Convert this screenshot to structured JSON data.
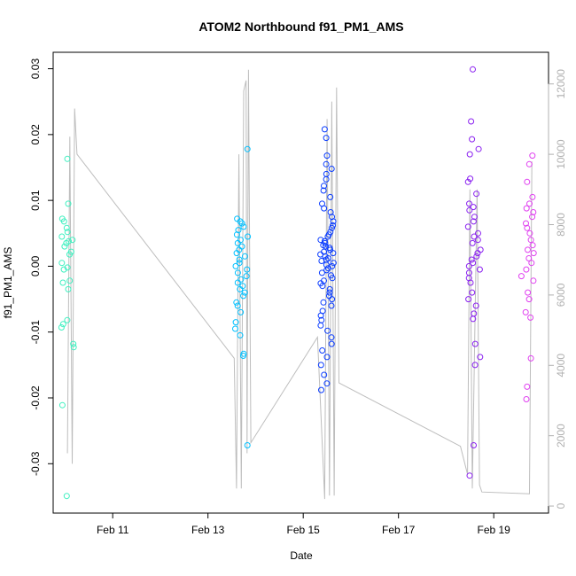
{
  "chart_data": {
    "type": "scatter",
    "title": "ATOM2 Northbound f91_PM1_AMS",
    "xlabel": "Date",
    "ylabel": "f91_PM1_AMS",
    "x_ticks": [
      "Feb 11",
      "Feb 13",
      "Feb 15",
      "Feb 17",
      "Feb 19"
    ],
    "x_tick_days": [
      11,
      13,
      15,
      17,
      19
    ],
    "xlim_days": [
      9.75,
      20.15
    ],
    "y_ticks": [
      -0.03,
      -0.02,
      -0.01,
      0.0,
      0.01,
      0.02,
      0.03
    ],
    "y_tick_labels": [
      "-0.03",
      "-0.02",
      "-0.01",
      "0.00",
      "0.01",
      "0.02",
      "0.03"
    ],
    "ylim": [
      -0.0375,
      0.0325
    ],
    "y2_ticks": [
      0,
      2000,
      4000,
      6000,
      8000,
      10000,
      12000
    ],
    "y2_tick_labels": [
      "0",
      "2000",
      "4000",
      "6000",
      "8000",
      "10000",
      "12000"
    ],
    "y2lim": [
      -200,
      12900
    ],
    "grid": false,
    "colors": {
      "point_gradient": [
        "#3ff0c0",
        "#00c0ff",
        "#0a3cff",
        "#8a20f0",
        "#e040f0"
      ],
      "secondary_line": "#bdbdbd",
      "secondary_axis": "#b0b0b0"
    },
    "series": [
      {
        "type": "scatter",
        "axis": "left",
        "clusters": [
          {
            "day": 10.05,
            "color": "#3ff0c0",
            "values": [
              0.0163,
              0.0095,
              0.0072,
              0.0068,
              0.0058,
              0.0052,
              0.0045,
              0.004,
              0.0038,
              0.0035,
              0.003,
              0.0022,
              0.0018,
              0.0005,
              -0.0002,
              -0.0005,
              -0.0022,
              -0.0025,
              -0.0035,
              -0.0082,
              -0.0088,
              -0.0093,
              -0.0118,
              -0.0123,
              -0.0211,
              -0.0349
            ]
          },
          {
            "day": 13.7,
            "color": "#00c0ff",
            "values": [
              0.0178,
              0.0072,
              0.0068,
              0.0065,
              0.006,
              0.0055,
              0.0048,
              0.0045,
              0.004,
              0.0035,
              0.003,
              0.0025,
              0.002,
              0.0015,
              0.001,
              0.0005,
              0.0,
              -0.0005,
              -0.001,
              -0.0015,
              -0.002,
              -0.0025,
              -0.003,
              -0.0035,
              -0.004,
              -0.0045,
              -0.0055,
              -0.006,
              -0.007,
              -0.0085,
              -0.0095,
              -0.0105,
              -0.0133,
              -0.0136,
              -0.0272
            ]
          },
          {
            "day": 15.5,
            "color": "#0a3cff",
            "values": [
              0.0208,
              0.0195,
              0.0168,
              0.0155,
              0.0148,
              0.014,
              0.0132,
              0.0122,
              0.0115,
              0.0105,
              0.0095,
              0.0088,
              0.0082,
              0.0075,
              0.0068,
              0.0062,
              0.0058,
              0.0052,
              0.0048,
              0.0045,
              0.004,
              0.0038,
              0.0035,
              0.0032,
              0.003,
              0.0028,
              0.0025,
              0.0022,
              0.002,
              0.0018,
              0.0015,
              0.0012,
              0.001,
              0.0008,
              0.0005,
              0.0002,
              0.0,
              -0.0003,
              -0.0006,
              -0.001,
              -0.0014,
              -0.0018,
              -0.0022,
              -0.0026,
              -0.003,
              -0.0035,
              -0.004,
              -0.0045,
              -0.005,
              -0.0055,
              -0.006,
              -0.0068,
              -0.0075,
              -0.0082,
              -0.009,
              -0.0098,
              -0.0108,
              -0.0118,
              -0.0128,
              -0.0138,
              -0.015,
              -0.0165,
              -0.0178,
              -0.0188
            ]
          },
          {
            "day": 18.6,
            "color": "#8a20f0",
            "values": [
              0.0299,
              0.022,
              0.0193,
              0.0178,
              0.017,
              0.0133,
              0.0128,
              0.011,
              0.0095,
              0.009,
              0.0085,
              0.0075,
              0.0068,
              0.006,
              0.005,
              0.0045,
              0.004,
              0.0035,
              0.0025,
              0.002,
              0.0015,
              0.001,
              0.0005,
              0.0,
              -0.0005,
              -0.001,
              -0.0018,
              -0.0025,
              -0.004,
              -0.005,
              -0.006,
              -0.0072,
              -0.008,
              -0.0118,
              -0.0138,
              -0.015,
              -0.0272,
              -0.0318
            ]
          },
          {
            "day": 19.7,
            "color": "#e040f0",
            "values": [
              0.0168,
              0.0155,
              0.0128,
              0.0105,
              0.0095,
              0.0088,
              0.0082,
              0.0075,
              0.0065,
              0.0058,
              0.005,
              0.004,
              0.0032,
              0.0025,
              0.002,
              0.0012,
              0.0005,
              -0.0005,
              -0.0015,
              -0.0022,
              -0.004,
              -0.005,
              -0.007,
              -0.0078,
              -0.014,
              -0.0183,
              -0.0202
            ]
          }
        ]
      },
      {
        "type": "line",
        "axis": "right",
        "points": [
          [
            10.05,
            1500
          ],
          [
            10.1,
            10500
          ],
          [
            10.15,
            1200
          ],
          [
            10.2,
            11300
          ],
          [
            10.25,
            10000
          ],
          [
            13.55,
            4200
          ],
          [
            13.6,
            500
          ],
          [
            13.65,
            10000
          ],
          [
            13.7,
            500
          ],
          [
            13.75,
            11800
          ],
          [
            13.8,
            12100
          ],
          [
            13.82,
            1500
          ],
          [
            13.85,
            12400
          ],
          [
            13.9,
            1800
          ],
          [
            15.3,
            4800
          ],
          [
            15.45,
            200
          ],
          [
            15.5,
            11000
          ],
          [
            15.55,
            300
          ],
          [
            15.6,
            11500
          ],
          [
            15.65,
            300
          ],
          [
            15.7,
            11900
          ],
          [
            15.75,
            3500
          ],
          [
            18.3,
            1700
          ],
          [
            18.45,
            900
          ],
          [
            18.5,
            9000
          ],
          [
            18.55,
            500
          ],
          [
            18.65,
            9000
          ],
          [
            18.7,
            600
          ],
          [
            18.75,
            400
          ],
          [
            19.75,
            350
          ],
          [
            19.8,
            9800
          ]
        ]
      }
    ]
  }
}
